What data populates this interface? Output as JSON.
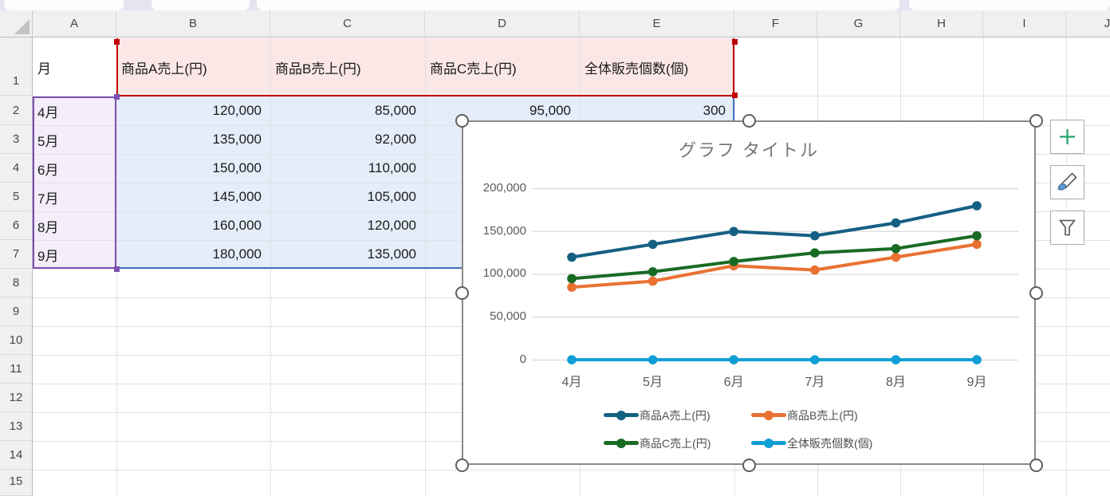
{
  "sheet": {
    "column_letters": [
      "A",
      "B",
      "C",
      "D",
      "E",
      "F",
      "G",
      "H",
      "I",
      "J"
    ],
    "row_numbers": [
      "1",
      "2",
      "3",
      "4",
      "5",
      "6",
      "7",
      "8",
      "9",
      "10",
      "11",
      "12",
      "13",
      "14",
      "15"
    ],
    "header": [
      "月",
      "商品A売上(円)",
      "商品B売上(円)",
      "商品C売上(円)",
      "全体販売個数(個)"
    ],
    "rows": [
      {
        "month": "4月",
        "product_a": "120,000",
        "product_b": "85,000",
        "product_c": "95,000",
        "total_qty": "300"
      },
      {
        "month": "5月",
        "product_a": "135,000",
        "product_b": "92,000"
      },
      {
        "month": "6月",
        "product_a": "150,000",
        "product_b": "110,000"
      },
      {
        "month": "7月",
        "product_a": "145,000",
        "product_b": "105,000"
      },
      {
        "month": "8月",
        "product_a": "160,000",
        "product_b": "120,000"
      },
      {
        "month": "9月",
        "product_a": "180,000",
        "product_b": "135,000"
      }
    ],
    "highlight_colors": {
      "category_range_border": "#7C51B4",
      "category_range_fill": "#F3EEF9",
      "series_name_border": "#C00000",
      "series_name_fill": "#FBE8E6",
      "values_border": "#4472C4",
      "values_fill": "#E4EDF9"
    }
  },
  "chart_data": {
    "type": "line",
    "title": "グラフ タイトル",
    "categories": [
      "4月",
      "5月",
      "6月",
      "7月",
      "8月",
      "9月"
    ],
    "series": [
      {
        "name": "商品A売上(円)",
        "color": "#156082",
        "values": [
          120000,
          135000,
          150000,
          145000,
          160000,
          180000
        ]
      },
      {
        "name": "商品B売上(円)",
        "color": "#E97132",
        "values": [
          85000,
          92000,
          110000,
          105000,
          120000,
          135000
        ]
      },
      {
        "name": "商品C売上(円)",
        "color": "#196B24",
        "values": [
          95000,
          103000,
          115000,
          125000,
          130000,
          145000
        ]
      },
      {
        "name": "全体販売個数(個)",
        "color": "#0F9ED5",
        "values": [
          300,
          320,
          340,
          330,
          350,
          380
        ]
      }
    ],
    "ylim": [
      0,
      200000
    ],
    "yticks_top_down": [
      "200,000",
      "150,000",
      "100,000",
      "50,000",
      "0"
    ],
    "grid": true,
    "legend_position": "bottom"
  },
  "chart_buttons": {
    "elements_icon": "plus-icon",
    "styles_icon": "paintbrush-icon",
    "filters_icon": "funnel-icon"
  }
}
